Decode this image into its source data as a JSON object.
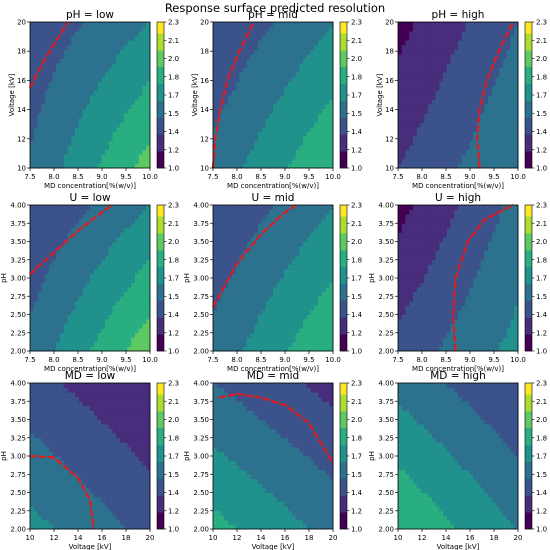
{
  "figure_title": "Response surface predicted resolution",
  "chart_data": [
    {
      "type": "contour",
      "title": "pH = low",
      "xlabel": "MD concentration[%(w/v)]",
      "ylabel": "Voltage [kV]",
      "xlim": [
        7.5,
        10.0
      ],
      "ylim": [
        10,
        20
      ],
      "xticks": [
        "7.5",
        "8.0",
        "8.5",
        "9.0",
        "9.5",
        "10.0"
      ],
      "yticks": [
        "10",
        "12",
        "14",
        "16",
        "18",
        "20"
      ],
      "z_corners": {
        "bottom_left": 1.47,
        "bottom_right": 1.97,
        "top_left": 1.33,
        "top_right": 1.6
      },
      "red_dashed_contour": [
        [
          7.5,
          15.5
        ],
        [
          7.75,
          17.1
        ],
        [
          8.0,
          18.5
        ],
        [
          8.3,
          20.0
        ]
      ]
    },
    {
      "type": "contour",
      "title": "pH = mid",
      "xlabel": "MD concentration[%(w/v)]",
      "ylabel": "Voltage [kV]",
      "xlim": [
        7.5,
        10.0
      ],
      "ylim": [
        10,
        20
      ],
      "xticks": [
        "7.5",
        "8.0",
        "8.5",
        "9.0",
        "9.5",
        "10.0"
      ],
      "yticks": [
        "10",
        "12",
        "14",
        "16",
        "18",
        "20"
      ],
      "z_corners": {
        "bottom_left": 1.5,
        "bottom_right": 1.9,
        "top_left": 1.3,
        "top_right": 1.6
      },
      "red_dashed_contour": [
        [
          7.5,
          10.0
        ],
        [
          7.55,
          12.0
        ],
        [
          7.65,
          14.0
        ],
        [
          7.8,
          16.0
        ],
        [
          8.05,
          18.0
        ],
        [
          8.35,
          20.0
        ]
      ]
    },
    {
      "type": "contour",
      "title": "pH = high",
      "xlabel": "MD concentration[%(w/v)]",
      "ylabel": "Voltage [kV]",
      "xlim": [
        7.5,
        10.0
      ],
      "ylim": [
        10,
        20
      ],
      "xticks": [
        "7.5",
        "8.0",
        "8.5",
        "9.0",
        "9.5",
        "10.0"
      ],
      "yticks": [
        "10",
        "12",
        "14",
        "16",
        "18",
        "20"
      ],
      "z_corners": {
        "bottom_left": 1.3,
        "bottom_right": 1.6,
        "top_left": 1.1,
        "top_right": 1.45
      },
      "red_dashed_contour": [
        [
          9.2,
          10.0
        ],
        [
          9.15,
          12.0
        ],
        [
          9.2,
          14.0
        ],
        [
          9.35,
          16.0
        ],
        [
          9.6,
          18.0
        ],
        [
          9.9,
          20.0
        ]
      ]
    },
    {
      "type": "contour",
      "title": "U = low",
      "xlabel": "MD concentration[%(w/v)]",
      "ylabel": "pH",
      "xlim": [
        7.5,
        10.0
      ],
      "ylim": [
        2.0,
        4.0
      ],
      "xticks": [
        "7.5",
        "8.0",
        "8.5",
        "9.0",
        "9.5",
        "10.0"
      ],
      "yticks": [
        "2.00",
        "2.25",
        "2.50",
        "2.75",
        "3.00",
        "3.25",
        "3.50",
        "3.75",
        "4.00"
      ],
      "z_corners": {
        "bottom_left": 1.5,
        "bottom_right": 2.0,
        "top_left": 1.3,
        "top_right": 1.6
      },
      "red_dashed_contour": [
        [
          7.5,
          3.05
        ],
        [
          8.0,
          3.35
        ],
        [
          8.5,
          3.65
        ],
        [
          9.0,
          3.9
        ],
        [
          9.2,
          4.0
        ]
      ]
    },
    {
      "type": "contour",
      "title": "U = mid",
      "xlabel": "MD concentration[%(w/v)]",
      "ylabel": "pH",
      "xlim": [
        7.5,
        10.0
      ],
      "ylim": [
        2.0,
        4.0
      ],
      "xticks": [
        "7.5",
        "8.0",
        "8.5",
        "9.0",
        "9.5",
        "10.0"
      ],
      "yticks": [
        "2.00",
        "2.25",
        "2.50",
        "2.75",
        "3.00",
        "3.25",
        "3.50",
        "3.75",
        "4.00"
      ],
      "z_corners": {
        "bottom_left": 1.5,
        "bottom_right": 1.9,
        "top_left": 1.3,
        "top_right": 1.6
      },
      "red_dashed_contour": [
        [
          7.5,
          2.6
        ],
        [
          7.75,
          2.9
        ],
        [
          8.0,
          3.2
        ],
        [
          8.5,
          3.6
        ],
        [
          9.0,
          3.9
        ],
        [
          9.25,
          4.0
        ]
      ]
    },
    {
      "type": "contour",
      "title": "U = high",
      "xlabel": "MD concentration[%(w/v)]",
      "ylabel": "pH",
      "xlim": [
        7.5,
        10.0
      ],
      "ylim": [
        2.0,
        4.0
      ],
      "xticks": [
        "7.5",
        "8.0",
        "8.5",
        "9.0",
        "9.5",
        "10.0"
      ],
      "yticks": [
        "2.00",
        "2.25",
        "2.50",
        "2.75",
        "3.00",
        "3.25",
        "3.50",
        "3.75",
        "4.00"
      ],
      "z_corners": {
        "bottom_left": 1.35,
        "bottom_right": 1.65,
        "top_left": 1.1,
        "top_right": 1.5
      },
      "red_dashed_contour": [
        [
          8.7,
          2.0
        ],
        [
          8.65,
          2.5
        ],
        [
          8.7,
          3.0
        ],
        [
          8.95,
          3.5
        ],
        [
          9.3,
          3.8
        ],
        [
          9.9,
          4.0
        ]
      ]
    },
    {
      "type": "contour",
      "title": "MD = low",
      "xlabel": "Voltage [kV]",
      "ylabel": "pH",
      "xlim": [
        10,
        20
      ],
      "ylim": [
        2.0,
        4.0
      ],
      "xticks": [
        "10",
        "12",
        "14",
        "16",
        "18",
        "20"
      ],
      "yticks": [
        "2.00",
        "2.25",
        "2.50",
        "2.75",
        "3.00",
        "3.25",
        "3.50",
        "3.75",
        "4.00"
      ],
      "z_corners": {
        "bottom_left": 1.65,
        "bottom_right": 1.4,
        "top_left": 1.35,
        "top_right": 1.15
      },
      "red_dashed_contour": [
        [
          10.0,
          3.0
        ],
        [
          12.0,
          2.98
        ],
        [
          14.0,
          2.7
        ],
        [
          15.0,
          2.4
        ],
        [
          15.3,
          2.0
        ]
      ]
    },
    {
      "type": "contour",
      "title": "MD = mid",
      "xlabel": "Voltage [kV]",
      "ylabel": "pH",
      "xlim": [
        10,
        20
      ],
      "ylim": [
        2.0,
        4.0
      ],
      "xticks": [
        "10",
        "12",
        "14",
        "16",
        "18",
        "20"
      ],
      "yticks": [
        "2.00",
        "2.25",
        "2.50",
        "2.75",
        "3.00",
        "3.25",
        "3.50",
        "3.75",
        "4.00"
      ],
      "z_corners": {
        "bottom_left": 1.8,
        "bottom_right": 1.55,
        "top_left": 1.45,
        "top_right": 1.25
      },
      "red_dashed_contour": [
        [
          10.5,
          3.8
        ],
        [
          12.0,
          3.85
        ],
        [
          14.0,
          3.8
        ],
        [
          16.0,
          3.7
        ],
        [
          18.0,
          3.45
        ],
        [
          20.0,
          2.9
        ]
      ]
    },
    {
      "type": "contour",
      "title": "MD = high",
      "xlabel": "Voltage [kV]",
      "ylabel": "pH",
      "xlim": [
        10,
        20
      ],
      "ylim": [
        2.0,
        4.0
      ],
      "xticks": [
        "10",
        "12",
        "14",
        "16",
        "18",
        "20"
      ],
      "yticks": [
        "2.00",
        "2.25",
        "2.50",
        "2.75",
        "3.00",
        "3.25",
        "3.50",
        "3.75",
        "4.00"
      ],
      "z_corners": {
        "bottom_left": 1.9,
        "bottom_right": 1.6,
        "top_left": 1.55,
        "top_right": 1.3
      },
      "red_dashed_contour": []
    }
  ],
  "colorbar": {
    "range": [
      1.0,
      2.3
    ],
    "ticks": [
      "1.0",
      "1.2",
      "1.4",
      "1.5",
      "1.7",
      "1.8",
      "2.0",
      "2.1",
      "2.3"
    ],
    "levels": [
      1.0,
      1.15,
      1.3,
      1.45,
      1.6,
      1.75,
      1.9,
      2.05,
      2.2,
      2.3
    ],
    "colors": [
      "#440154",
      "#472d7b",
      "#3b528b",
      "#2c728e",
      "#21918c",
      "#28ae80",
      "#5ec962",
      "#addc30",
      "#fde725"
    ]
  },
  "contour_line_color": "#e31a1c"
}
